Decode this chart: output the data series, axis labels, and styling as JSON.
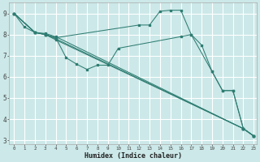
{
  "xlabel": "Humidex (Indice chaleur)",
  "bg_color": "#cce8e8",
  "grid_color": "#ffffff",
  "line_color": "#2e7d72",
  "xlim": [
    -0.5,
    23.3
  ],
  "ylim": [
    2.8,
    9.5
  ],
  "yticks": [
    3,
    4,
    5,
    6,
    7,
    8,
    9
  ],
  "xticks": [
    0,
    1,
    2,
    3,
    4,
    5,
    6,
    7,
    8,
    9,
    10,
    11,
    12,
    13,
    14,
    15,
    16,
    17,
    18,
    19,
    20,
    21,
    22,
    23
  ],
  "series": [
    {
      "x": [
        0,
        1,
        2,
        3,
        4,
        22,
        23
      ],
      "y": [
        9.0,
        8.35,
        8.1,
        8.05,
        7.9,
        3.55,
        3.2
      ]
    },
    {
      "x": [
        0,
        2,
        3,
        4,
        5,
        6,
        7,
        8,
        9,
        10,
        16,
        17,
        19,
        20,
        21,
        22,
        23
      ],
      "y": [
        9.0,
        8.1,
        8.0,
        7.85,
        6.9,
        6.6,
        6.35,
        6.55,
        6.55,
        7.35,
        7.9,
        8.0,
        6.25,
        5.35,
        5.35,
        3.55,
        3.2
      ]
    },
    {
      "x": [
        0,
        2,
        3,
        4,
        12,
        13,
        14,
        15,
        16,
        17,
        18,
        19,
        20,
        21,
        22,
        23
      ],
      "y": [
        9.0,
        8.1,
        8.0,
        7.85,
        8.45,
        8.45,
        9.1,
        9.15,
        9.15,
        8.0,
        7.5,
        6.25,
        5.35,
        5.35,
        3.55,
        3.2
      ]
    },
    {
      "x": [
        0,
        2,
        3,
        4,
        22,
        23
      ],
      "y": [
        9.0,
        8.1,
        8.0,
        7.8,
        3.55,
        3.2
      ]
    },
    {
      "x": [
        0,
        2,
        3,
        4,
        22,
        23
      ],
      "y": [
        9.0,
        8.1,
        8.0,
        7.75,
        3.55,
        3.2
      ]
    }
  ]
}
